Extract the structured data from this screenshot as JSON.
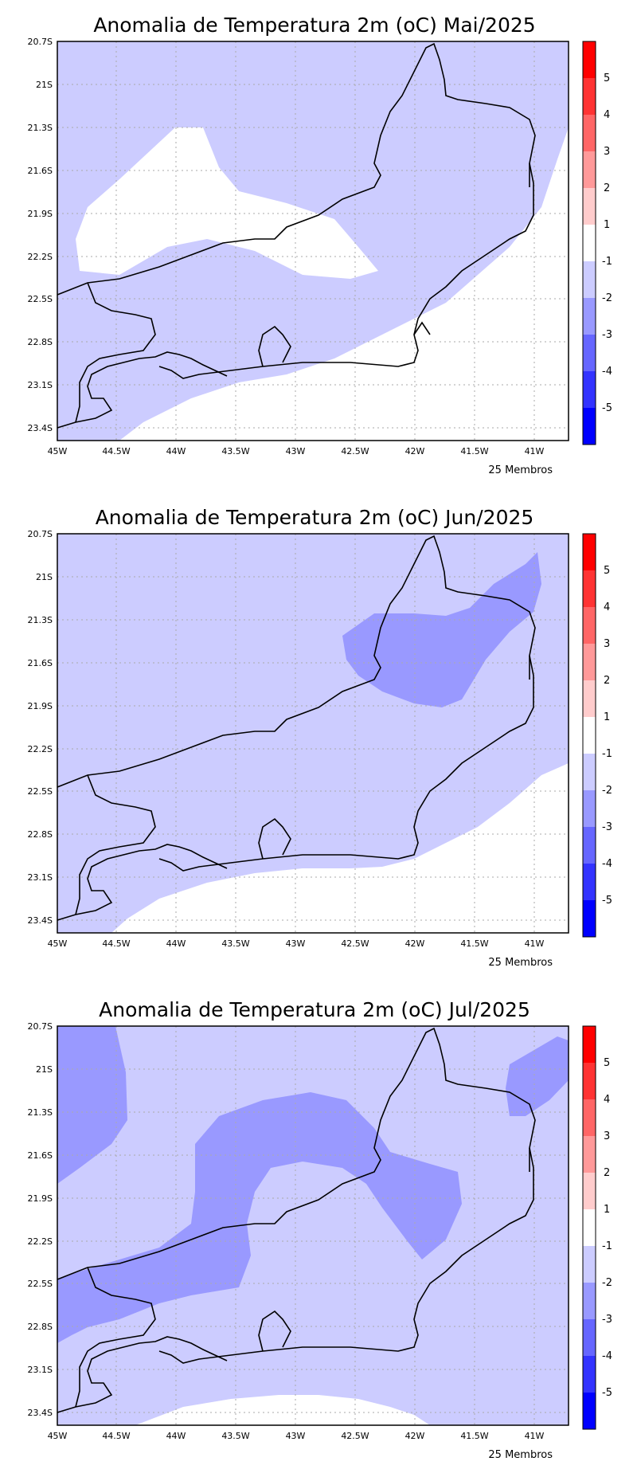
{
  "colors": {
    "cat_-1_0": "#ccccff",
    "cat_-2_-1": "#9999ff",
    "cat_white": "#ffffff",
    "coast": "#000000",
    "grid": "#aaaaaa"
  },
  "axes": {
    "x_ticks": [
      "45W",
      "44.5W",
      "44W",
      "43.5W",
      "43W",
      "42.5W",
      "42W",
      "41.5W",
      "41W"
    ],
    "y_ticks": [
      "20.7S",
      "21S",
      "21.3S",
      "21.6S",
      "21.9S",
      "22.2S",
      "22.5S",
      "22.8S",
      "23.1S",
      "23.4S"
    ]
  },
  "colorbar": {
    "labels": [
      "5",
      "4",
      "3",
      "2",
      "1",
      "-1",
      "-2",
      "-3",
      "-4",
      "-5"
    ],
    "colors": [
      "#ff0000",
      "#ff3333",
      "#ff6666",
      "#ff9999",
      "#ffcccc",
      "#ffffff",
      "#ccccff",
      "#9999ff",
      "#6666ff",
      "#3333ff",
      "#0000ff"
    ]
  },
  "panels": [
    {
      "title": "Anomalia de Temperatura 2m (oC) Mai/2025",
      "footer": "25 Membros"
    },
    {
      "title": "Anomalia de Temperatura 2m (oC) Jun/2025",
      "footer": "25 Membros"
    },
    {
      "title": "Anomalia de Temperatura 2m (oC) Jul/2025",
      "footer": "25 Membros"
    }
  ]
}
